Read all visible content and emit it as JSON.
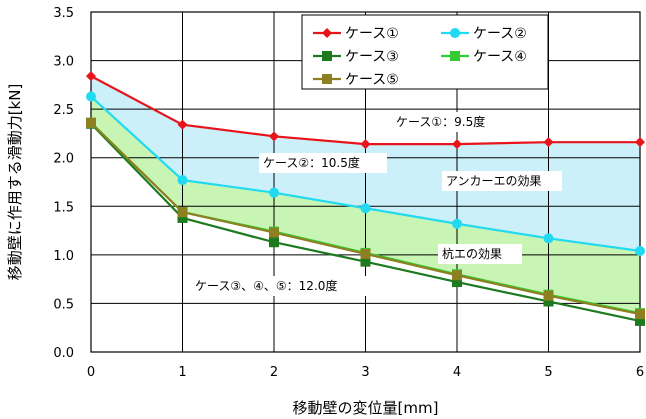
{
  "chart_data": {
    "type": "line",
    "xlabel": "移動壁の変位量[mm]",
    "ylabel": "移動壁に作用する滑動力[kN]",
    "x": [
      0,
      1,
      2,
      3,
      4,
      5,
      6
    ],
    "xlim": [
      0,
      6
    ],
    "ylim": [
      0,
      3.5
    ],
    "xticks": [
      "0",
      "1",
      "2",
      "3",
      "4",
      "5",
      "6"
    ],
    "yticks": [
      "0.0",
      "0.5",
      "1.0",
      "1.5",
      "2.0",
      "2.5",
      "3.0",
      "3.5"
    ],
    "grid": true,
    "legend_position": "top-right",
    "series": [
      {
        "name": "ケース①",
        "color": "#e8141b",
        "marker": "diamond",
        "values": [
          2.84,
          2.34,
          2.22,
          2.14,
          2.14,
          2.16,
          2.16
        ]
      },
      {
        "name": "ケース②",
        "color": "#22d9f2",
        "marker": "circle",
        "values": [
          2.63,
          1.77,
          1.64,
          1.48,
          1.32,
          1.17,
          1.04
        ]
      },
      {
        "name": "ケース③",
        "color": "#1e7a1e",
        "marker": "square",
        "values": [
          2.35,
          1.38,
          1.13,
          0.93,
          0.72,
          0.52,
          0.32
        ]
      },
      {
        "name": "ケース④",
        "color": "#33cc33",
        "marker": "square",
        "values": [
          2.36,
          1.44,
          1.24,
          1.02,
          0.8,
          0.59,
          0.4
        ]
      },
      {
        "name": "ケース⑤",
        "color": "#8c8020",
        "marker": "square",
        "values": [
          2.36,
          1.44,
          1.23,
          1.01,
          0.79,
          0.58,
          0.39
        ]
      }
    ],
    "fills": [
      {
        "between": [
          "ケース①",
          "ケース②"
        ],
        "color": "#ccf0fa"
      },
      {
        "between": [
          "ケース②",
          "ケース⑤"
        ],
        "color": "#c8f5b4"
      }
    ],
    "annotations": [
      {
        "text": "ケース①：9.5度"
      },
      {
        "text": "ケース②：10.5度"
      },
      {
        "text": "アンカーエの効果"
      },
      {
        "text": "杭エの効果"
      },
      {
        "text": "ケース③、④、⑤：12.0度"
      }
    ]
  }
}
